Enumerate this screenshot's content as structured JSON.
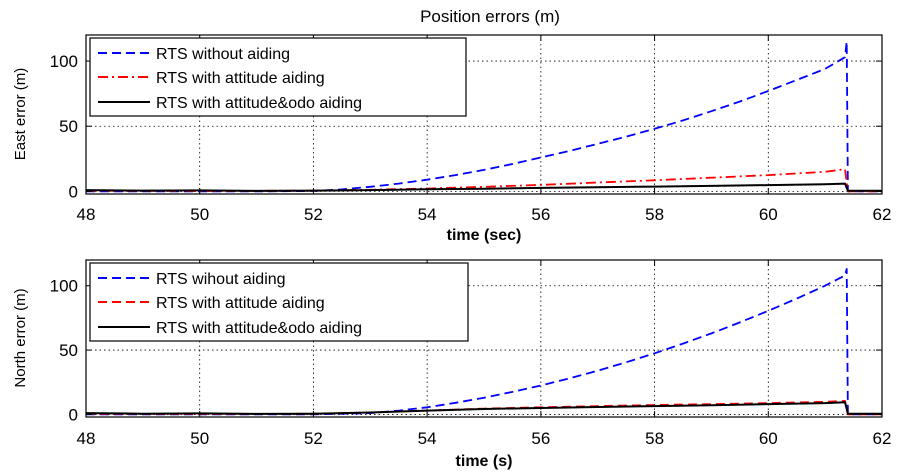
{
  "chart_data": [
    {
      "type": "line",
      "title": "Position errors (m)",
      "xlabel": "time (sec)",
      "ylabel": "East error (m)",
      "xlim": [
        48,
        62
      ],
      "ylim": [
        -2,
        120
      ],
      "xticks": [
        48,
        50,
        52,
        54,
        56,
        58,
        60,
        62
      ],
      "yticks": [
        0,
        50,
        100
      ],
      "grid": true,
      "legend_position": "top-left",
      "series": [
        {
          "name": "RTS without aiding",
          "color": "#0000ff",
          "line_style": "dashed",
          "x": [
            48,
            49,
            50,
            51,
            52,
            52.5,
            53,
            53.5,
            54,
            54.5,
            55,
            55.5,
            56,
            56.5,
            57,
            57.5,
            58,
            58.5,
            59,
            59.5,
            60,
            60.5,
            61,
            61.35,
            61.38,
            61.4,
            62
          ],
          "y": [
            0,
            0,
            0,
            0,
            0.3,
            1.5,
            3.5,
            6,
            9,
            12.5,
            16.5,
            21,
            26,
            31,
            36.5,
            42,
            48,
            54.5,
            61.5,
            69,
            77,
            85.5,
            94,
            103,
            115,
            0,
            0
          ]
        },
        {
          "name": "RTS with attitude aiding",
          "color": "#ff0000",
          "line_style": "dash-dot",
          "x": [
            48,
            50,
            52,
            53,
            54,
            55,
            56,
            57,
            58,
            59,
            60,
            61,
            61.35,
            61.4,
            62
          ],
          "y": [
            0.5,
            0.3,
            0.5,
            1.2,
            2.2,
            3.5,
            5,
            6.8,
            8.5,
            10.5,
            12.5,
            15,
            17,
            0,
            0
          ]
        },
        {
          "name": "RTS with attitude&odo aiding",
          "color": "#000000",
          "line_style": "solid",
          "x": [
            48,
            49,
            50,
            51,
            52,
            53,
            54,
            55,
            56,
            57,
            58,
            59,
            60,
            61,
            61.35,
            61.4,
            62
          ],
          "y": [
            1,
            0.6,
            0.8,
            0.4,
            0.6,
            1,
            1.6,
            2.1,
            2.7,
            3.2,
            3.7,
            4.2,
            4.8,
            5.5,
            6,
            0.5,
            0.5
          ]
        }
      ]
    },
    {
      "type": "line",
      "title": "",
      "xlabel": "time (s)",
      "ylabel": "North error (m)",
      "xlim": [
        48,
        62
      ],
      "ylim": [
        -2,
        120
      ],
      "xticks": [
        48,
        50,
        52,
        54,
        56,
        58,
        60,
        62
      ],
      "yticks": [
        0,
        50,
        100
      ],
      "grid": true,
      "legend_position": "top-left",
      "series": [
        {
          "name": "RTS wihout aiding",
          "color": "#0000ff",
          "line_style": "dashed",
          "x": [
            48,
            50,
            52,
            53,
            53.5,
            54,
            54.5,
            55,
            55.5,
            56,
            56.5,
            57,
            57.5,
            58,
            58.5,
            59,
            59.5,
            60,
            60.5,
            61,
            61.35,
            61.38,
            61.4,
            62
          ],
          "y": [
            0,
            0,
            0,
            1,
            3,
            5.5,
            9,
            13,
            17.5,
            22.5,
            28,
            34,
            40.5,
            47.5,
            55,
            63,
            71.5,
            80.5,
            90,
            100,
            108,
            113,
            0,
            0
          ]
        },
        {
          "name": "RTS with attitude aiding",
          "color": "#ff0000",
          "line_style": "dashed",
          "x": [
            48,
            50,
            52,
            53,
            54,
            55,
            56,
            57,
            58,
            59,
            60,
            61,
            61.35,
            61.4,
            62
          ],
          "y": [
            0.5,
            0.3,
            0.5,
            1.5,
            3,
            4.5,
            5.5,
            6.5,
            7.3,
            8,
            8.8,
            9.8,
            10.5,
            0,
            0
          ]
        },
        {
          "name": "RTS with attitude&odo aiding",
          "color": "#000000",
          "line_style": "solid",
          "x": [
            48,
            49,
            50,
            51,
            52,
            53,
            54,
            55,
            56,
            57,
            58,
            59,
            60,
            61,
            61.35,
            61.4,
            62
          ],
          "y": [
            1,
            0.6,
            0.8,
            0.4,
            0.6,
            1.5,
            3,
            4.2,
            5,
            5.8,
            6.5,
            7.2,
            8,
            8.8,
            9.5,
            0.5,
            0.5
          ]
        }
      ]
    }
  ]
}
